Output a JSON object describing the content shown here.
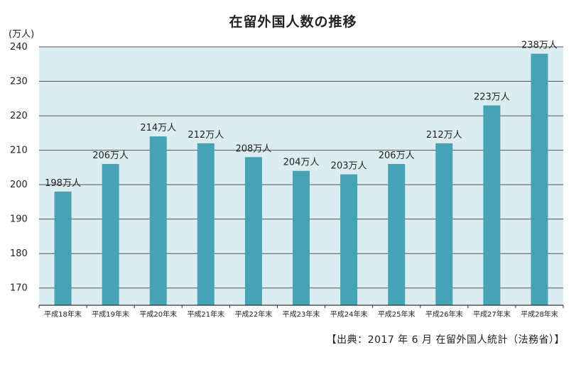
{
  "chart_data": {
    "type": "bar",
    "title": "在留外国人数の推移",
    "ylabel": "(万人)",
    "xlabel": "",
    "ylim": [
      165,
      240
    ],
    "yticks": [
      170,
      180,
      190,
      200,
      210,
      220,
      230,
      240
    ],
    "categories": [
      "平成18年末",
      "平成19年末",
      "平成20年末",
      "平成21年末",
      "平成22年末",
      "平成23年末",
      "平成24年末",
      "平成25年末",
      "平成26年末",
      "平成27年末",
      "平成28年末"
    ],
    "values": [
      198,
      206,
      214,
      212,
      208,
      204,
      203,
      206,
      212,
      223,
      238
    ],
    "data_labels": [
      "198万人",
      "206万人",
      "214万人",
      "212万人",
      "208万人",
      "204万人",
      "203万人",
      "206万人",
      "212万人",
      "223万人",
      "238万人"
    ],
    "grid": true,
    "colors": {
      "bar": "#45a3b5",
      "plot_bg": "#dcedf2",
      "grid": "#555555"
    }
  },
  "source_note": "【出典：2017 年 6 月 在留外国人統計（法務省）】"
}
